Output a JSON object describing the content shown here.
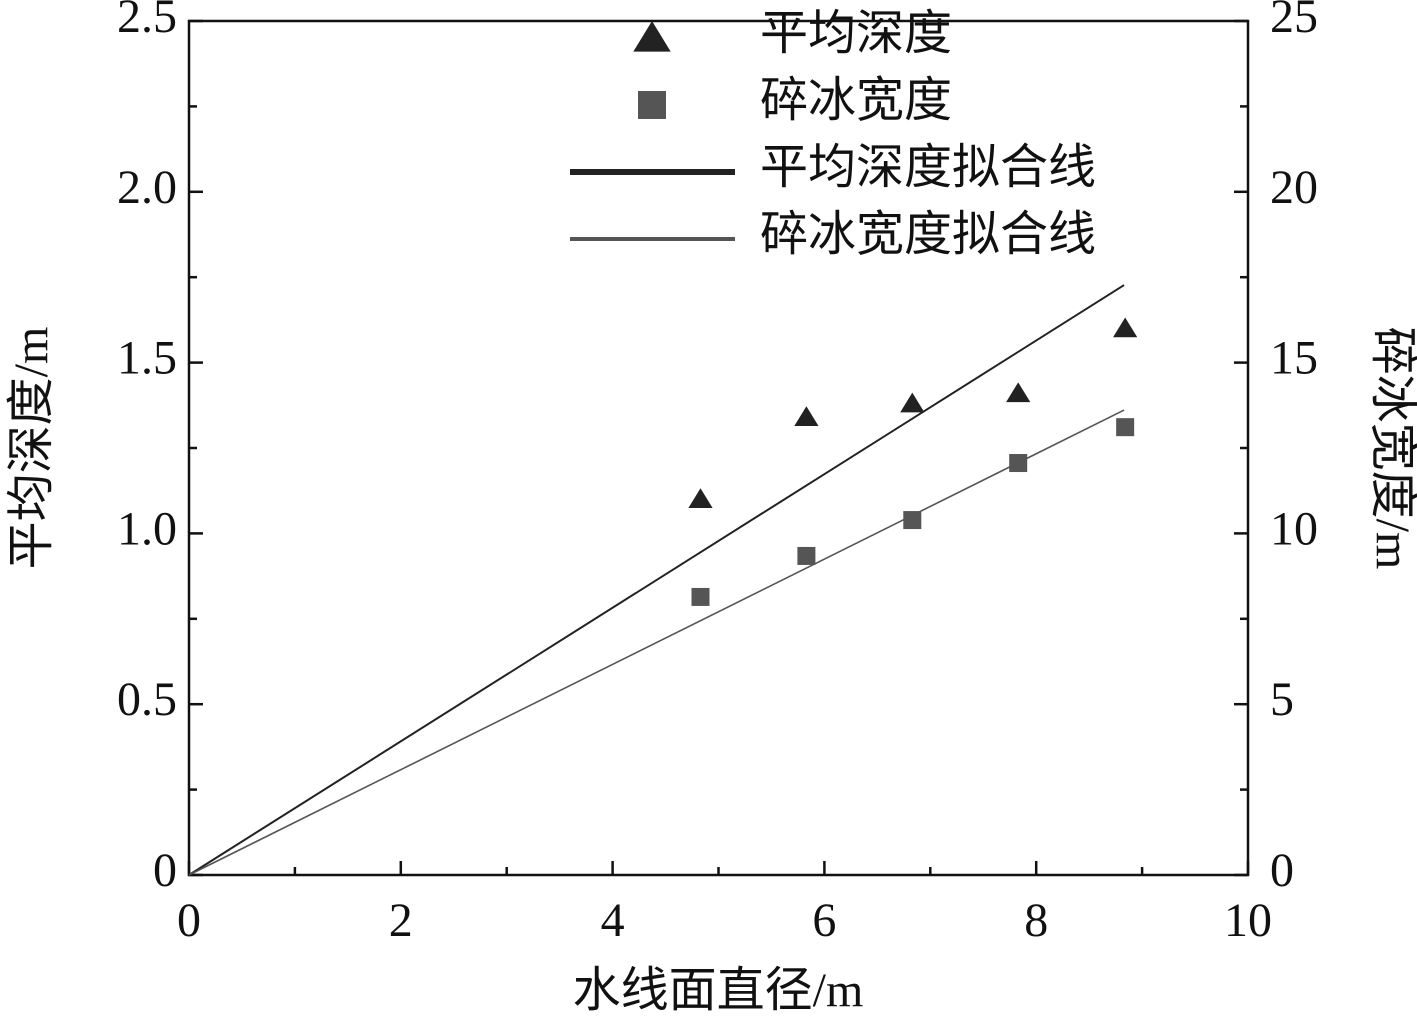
{
  "chart_data": {
    "type": "scatter",
    "x_label": "水线面直径/m",
    "y_label": "平均深度/m",
    "y2_label": "碎冰宽度/m",
    "xlim": [
      0,
      10
    ],
    "xticks": [
      0,
      2,
      4,
      6,
      8,
      10
    ],
    "ylim": [
      0,
      2.5
    ],
    "yticks": [
      0,
      0.5,
      {
        "value": 1,
        "label": "1.0"
      },
      1.5,
      {
        "value": 2,
        "label": "2.0"
      },
      2.5
    ],
    "y2lim": [
      0,
      25
    ],
    "y2ticks": [
      0,
      5,
      10,
      15,
      20,
      25
    ],
    "legend": "top",
    "series": [
      {
        "name": "平均深度",
        "color": "#222222",
        "marker": "triangle",
        "x": [
          4.83,
          5.83,
          6.83,
          7.83,
          8.84
        ],
        "values": [
          1.1,
          1.34,
          1.38,
          1.41,
          1.6
        ]
      },
      {
        "name": "碎冰宽度",
        "color": "#555555",
        "marker": "square",
        "axis": "y2",
        "x": [
          4.83,
          5.83,
          6.83,
          7.83,
          8.84
        ],
        "values": [
          8.14,
          9.34,
          10.39,
          12.06,
          13.11
        ]
      },
      {
        "name": "平均深度拟合线",
        "color": "#222222",
        "marker": "line",
        "x": [
          0,
          8.83
        ],
        "values": [
          0,
          1.727
        ]
      },
      {
        "name": "碎冰宽度拟合线",
        "color": "#555555",
        "marker": "line",
        "axis": "y2",
        "x": [
          0,
          8.83
        ],
        "values": [
          0,
          13.61
        ]
      }
    ]
  }
}
